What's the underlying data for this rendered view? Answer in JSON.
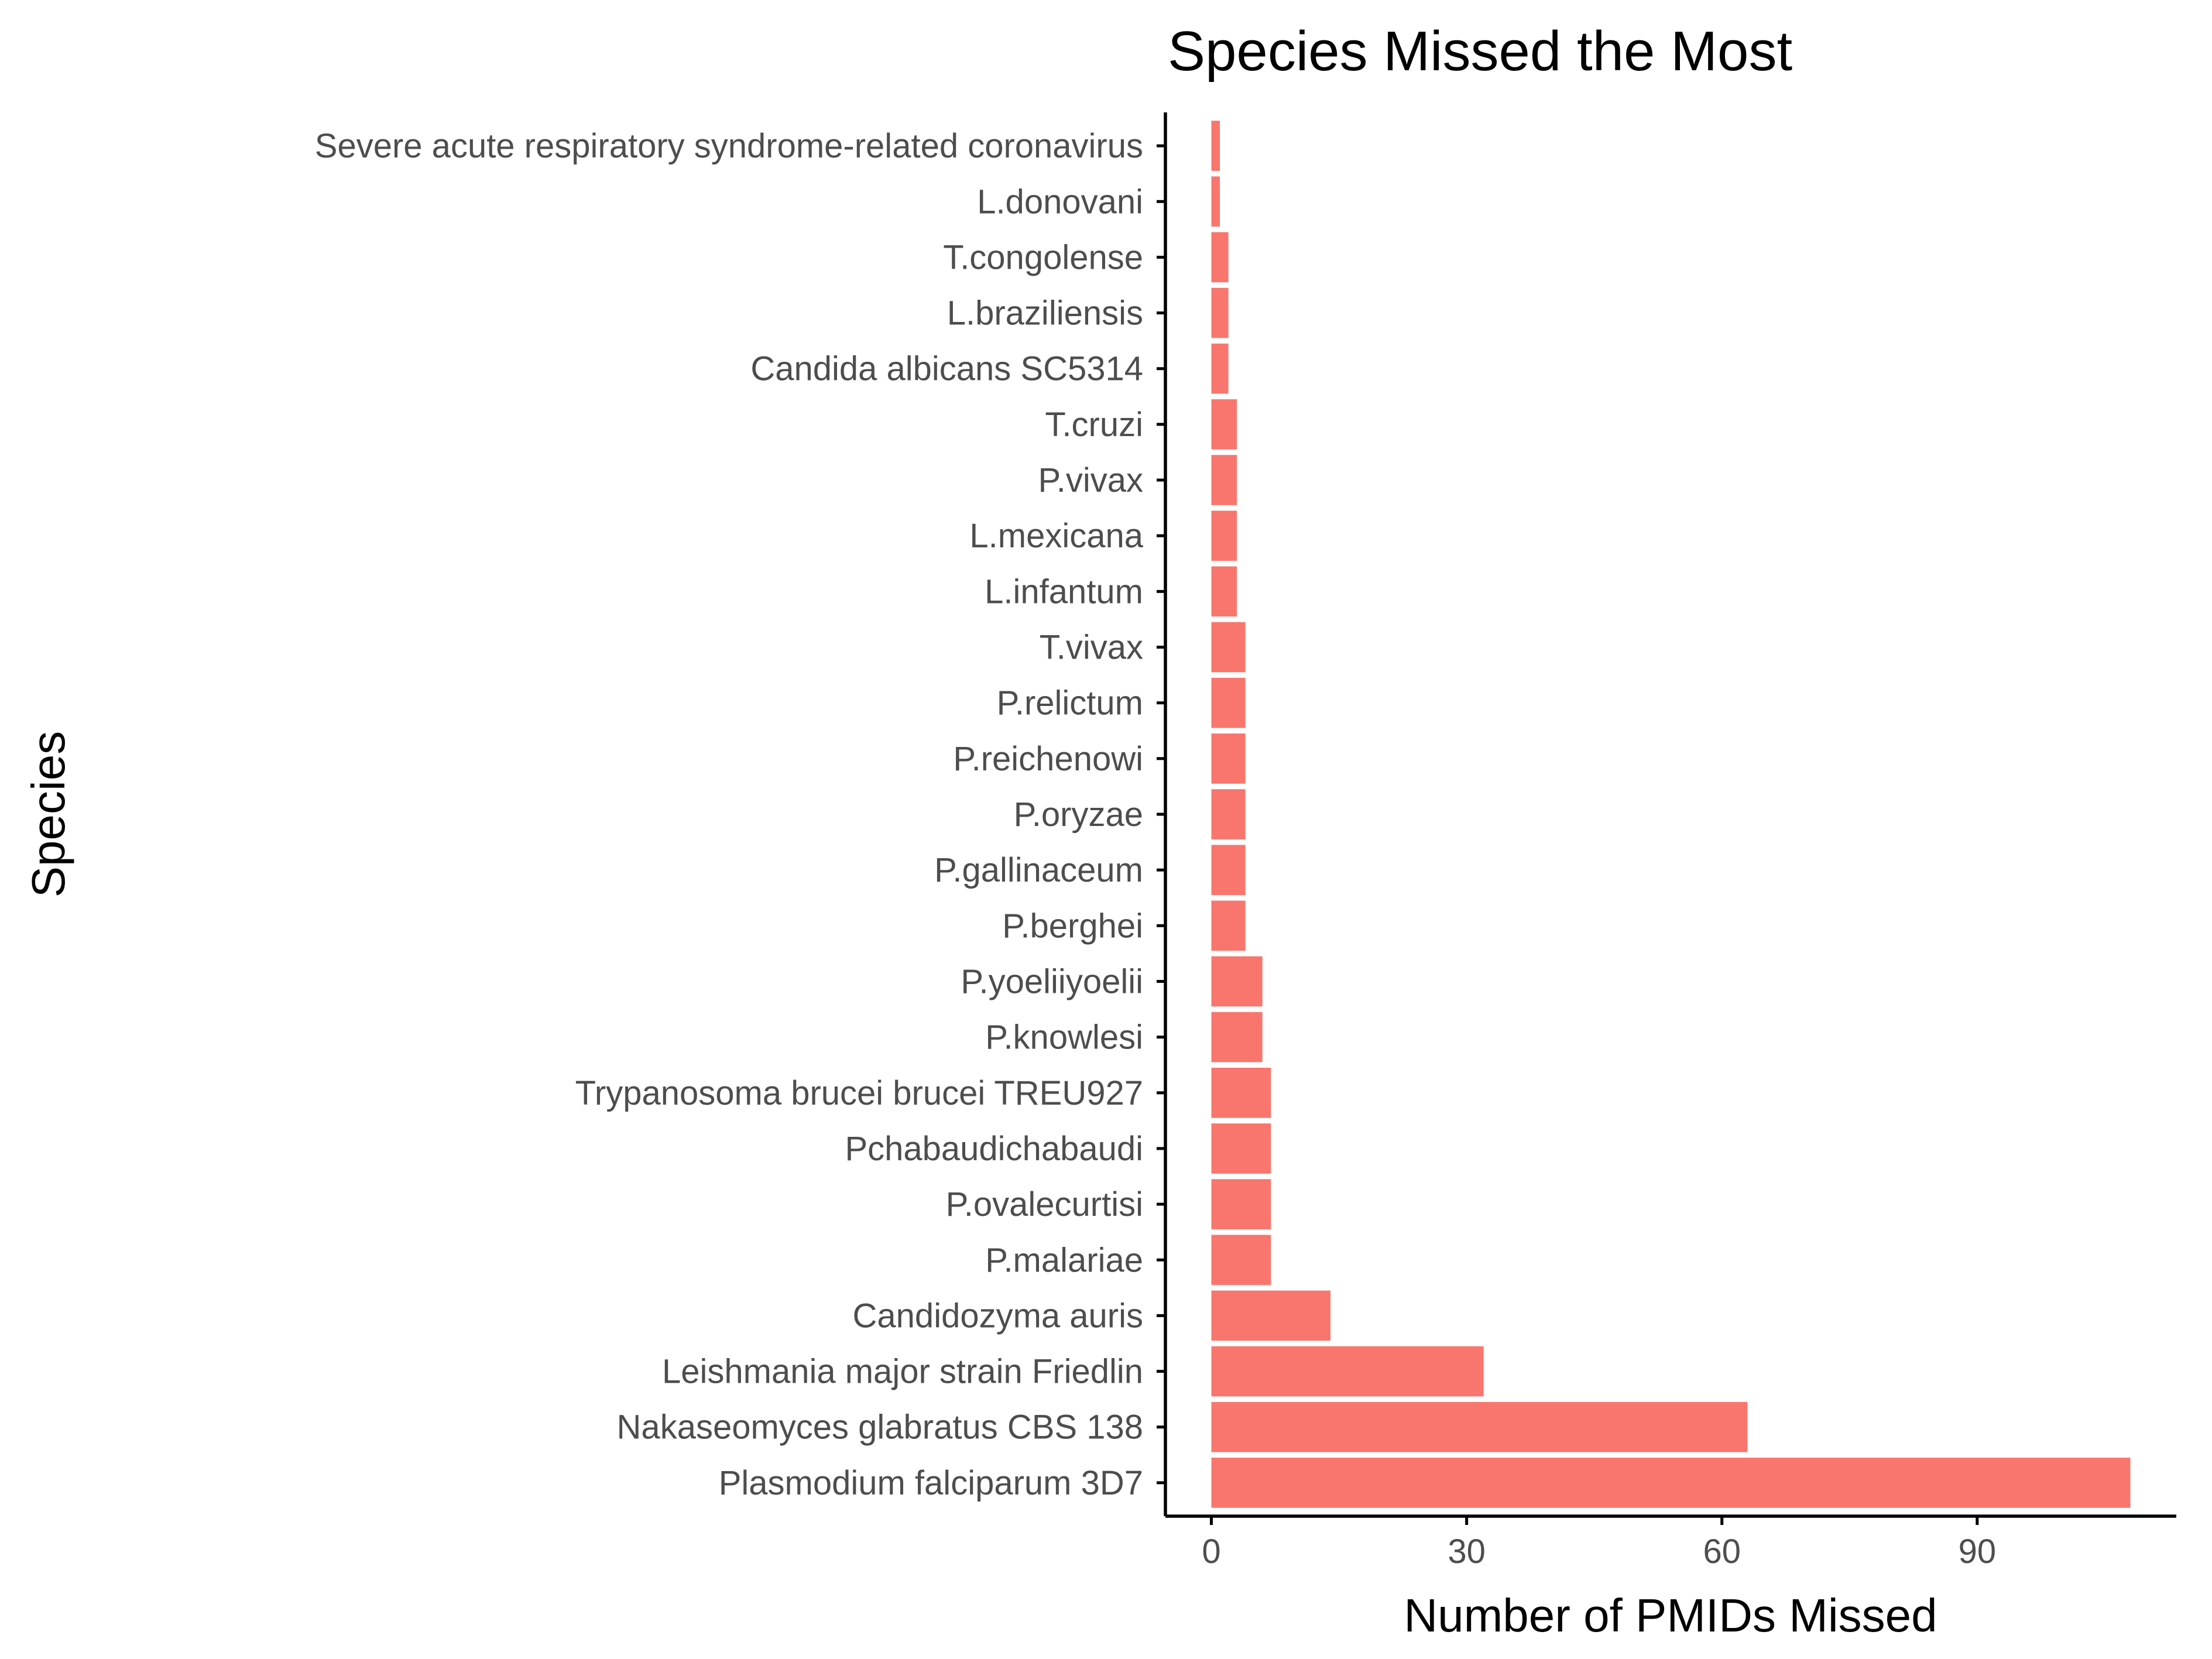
{
  "chart_data": {
    "type": "bar",
    "orientation": "horizontal",
    "title": "Species Missed the Most",
    "xlabel": "Number of PMIDs Missed",
    "ylabel": "Species",
    "xlim": [
      -5.4,
      113.4
    ],
    "xticks": [
      0,
      30,
      60,
      90
    ],
    "xtick_labels": [
      "0",
      "30",
      "60",
      "90"
    ],
    "grid": false,
    "bar_color": "#F8766D",
    "categories": [
      "Severe acute respiratory syndrome-related coronavirus",
      "L.donovani",
      "T.congolense",
      "L.braziliensis",
      "Candida albicans SC5314",
      "T.cruzi",
      "P.vivax",
      "L.mexicana",
      "L.infantum",
      "T.vivax",
      "P.relictum",
      "P.reichenowi",
      "P.oryzae",
      "P.gallinaceum",
      "P.berghei",
      "P.yoeliiyoelii",
      "P.knowlesi",
      "Trypanosoma brucei brucei TREU927",
      "Pchabaudichabaudi",
      "P.ovalecurtisi",
      "P.malariae",
      "Candidozyma auris",
      "Leishmania major strain Friedlin",
      "Nakaseomyces glabratus CBS 138",
      "Plasmodium falciparum 3D7"
    ],
    "values": [
      1,
      1,
      2,
      2,
      2,
      3,
      3,
      3,
      3,
      4,
      4,
      4,
      4,
      4,
      4,
      6,
      6,
      7,
      7,
      7,
      7,
      14,
      32,
      63,
      108
    ]
  }
}
